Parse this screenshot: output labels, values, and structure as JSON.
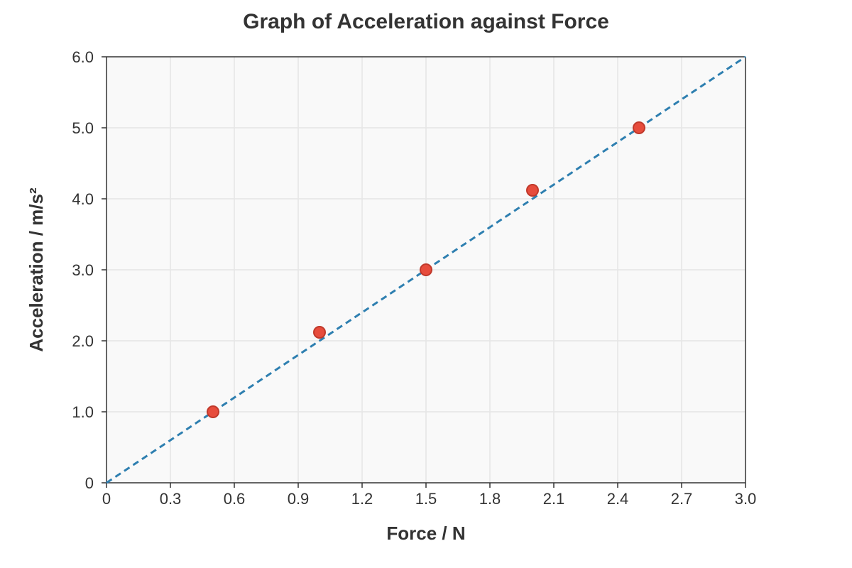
{
  "chart_data": {
    "type": "scatter",
    "title": "Graph of Acceleration against Force",
    "xlabel": "Force / N",
    "ylabel": "Acceleration / m/s²",
    "xlim": [
      0,
      3.0
    ],
    "ylim": [
      0,
      6.0
    ],
    "x_ticks": [
      "0",
      "0.3",
      "0.6",
      "0.9",
      "1.2",
      "1.5",
      "1.8",
      "2.1",
      "2.4",
      "2.7",
      "3.0"
    ],
    "x_tick_values": [
      0,
      0.3,
      0.6,
      0.9,
      1.2,
      1.5,
      1.8,
      2.1,
      2.4,
      2.7,
      3.0
    ],
    "y_ticks": [
      "0",
      "1.0",
      "2.0",
      "3.0",
      "4.0",
      "5.0",
      "6.0"
    ],
    "y_tick_values": [
      0,
      1.0,
      2.0,
      3.0,
      4.0,
      5.0,
      6.0
    ],
    "grid": true,
    "series": [
      {
        "kind": "points",
        "x": [
          0.5,
          1.0,
          1.5,
          2.0,
          2.5
        ],
        "y": [
          1.0,
          2.12,
          3.0,
          4.12,
          5.0
        ],
        "color": "#e74c3c"
      },
      {
        "kind": "line",
        "style": "dashed",
        "x": [
          0,
          3.0
        ],
        "y": [
          0,
          6.0
        ],
        "color": "#2e7fb0"
      }
    ],
    "colors": {
      "plot_background": "#f9f9f9",
      "grid": "#e6e6e6",
      "axis": "#333333",
      "point_fill": "#e74c3c",
      "point_stroke": "#c0392b",
      "fit_line": "#2e7fb0"
    }
  }
}
